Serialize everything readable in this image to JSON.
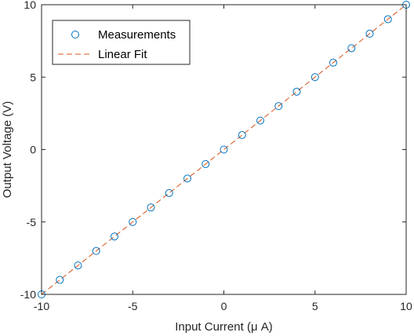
{
  "chart_data": {
    "type": "scatter",
    "xlabel": "Input Current (μ A)",
    "ylabel": "Output Voltage (V)",
    "xlim": [
      -10,
      10
    ],
    "ylim": [
      -10,
      10
    ],
    "xticks": [
      -10,
      -5,
      0,
      5,
      10
    ],
    "yticks": [
      -10,
      -5,
      0,
      5,
      10
    ],
    "grid": false,
    "legend_position": "top-left",
    "series": [
      {
        "name": "Measurements",
        "kind": "markers",
        "marker": "circle",
        "color": "#0072BD",
        "x": [
          -10,
          -9,
          -8,
          -7,
          -6,
          -5,
          -4,
          -3,
          -2,
          -1,
          0,
          1,
          2,
          3,
          4,
          5,
          6,
          7,
          8,
          9,
          10
        ],
        "y": [
          -10,
          -9,
          -8,
          -7,
          -6,
          -5,
          -4,
          -3,
          -2,
          -1,
          0,
          1,
          2,
          3,
          4,
          5,
          6,
          7,
          8,
          9,
          10
        ]
      },
      {
        "name": "Linear Fit",
        "kind": "line",
        "style": "dashed",
        "color": "#D95319",
        "x": [
          -10,
          10
        ],
        "y": [
          -10,
          10
        ]
      }
    ]
  }
}
